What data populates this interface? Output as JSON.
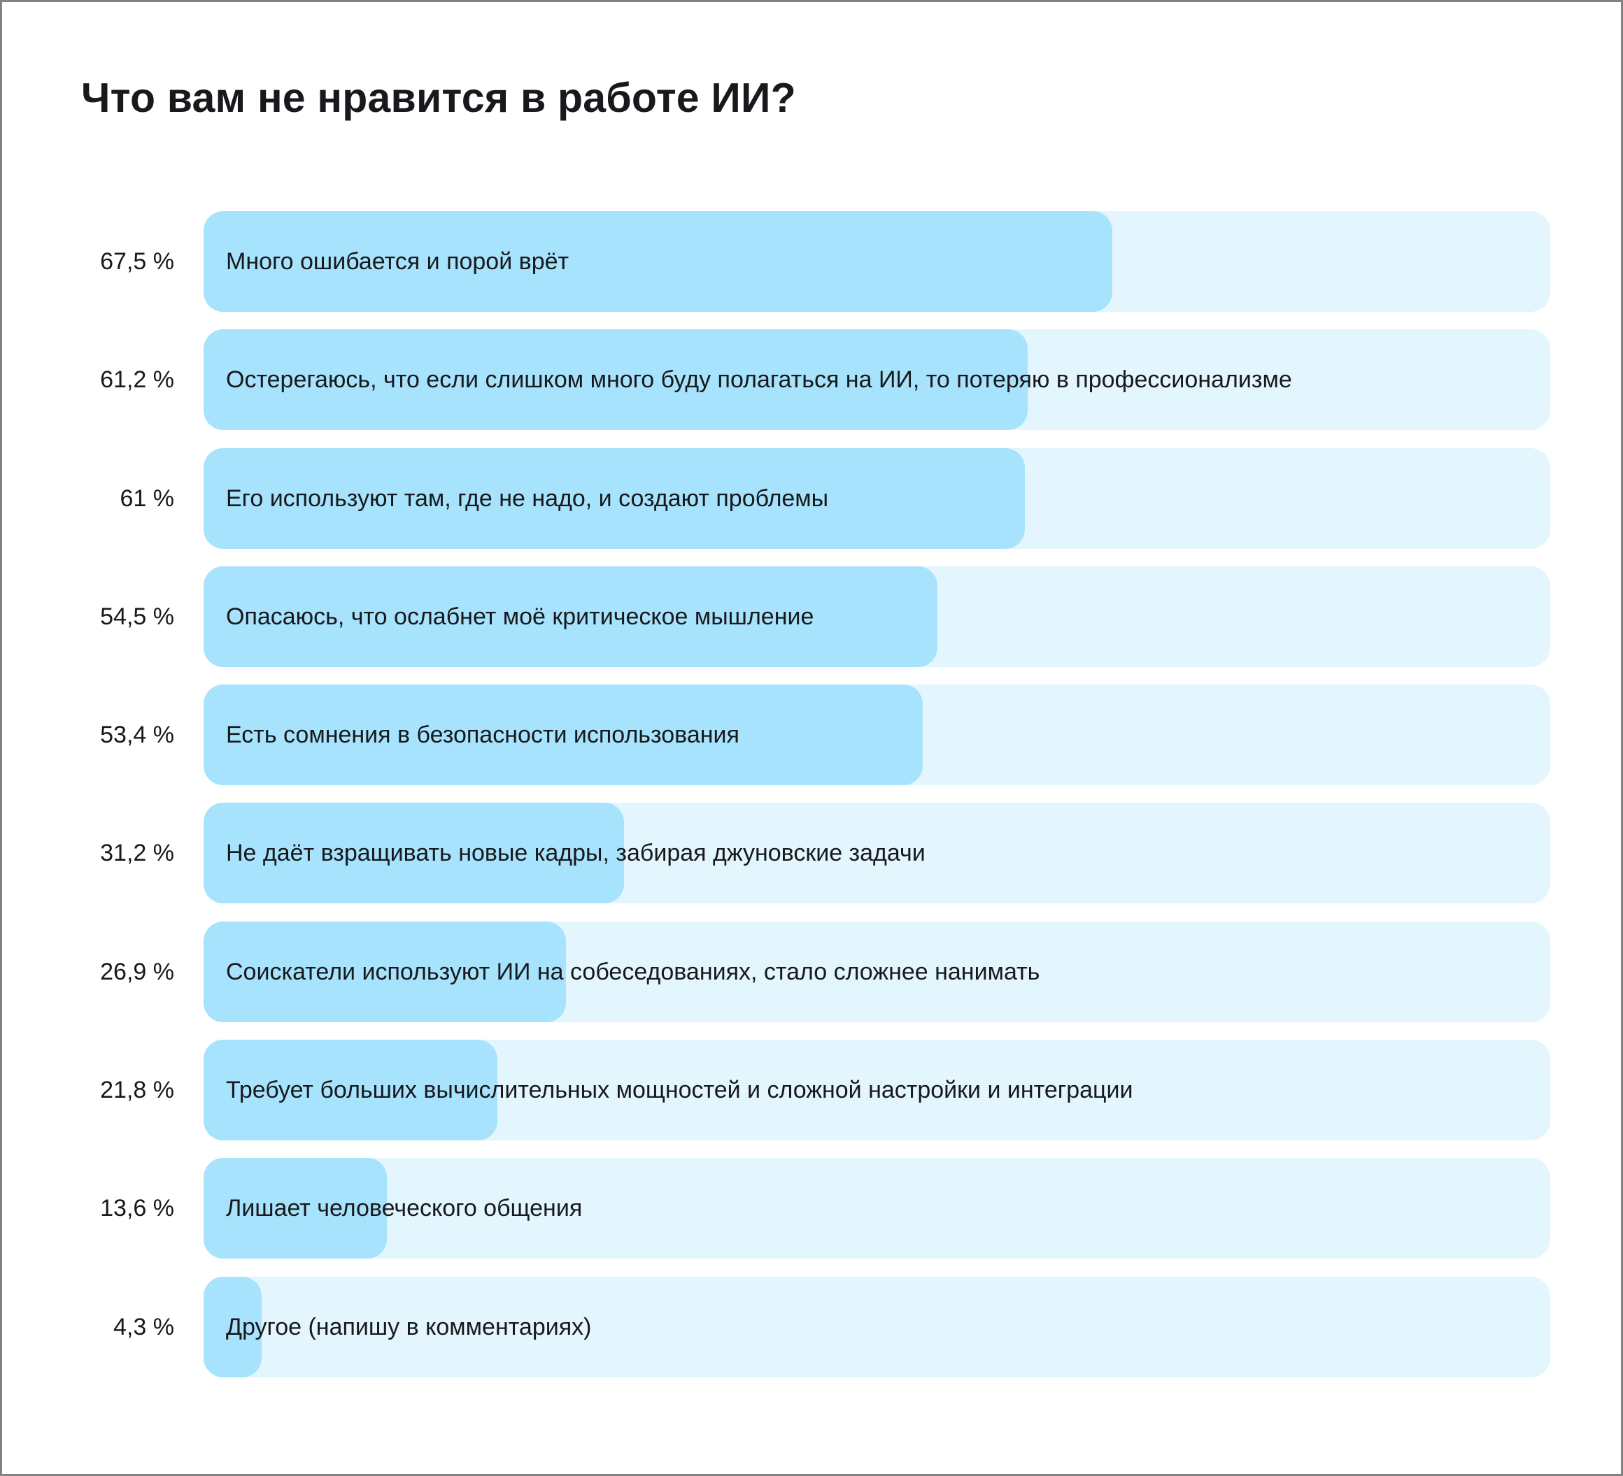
{
  "colors": {
    "bar_fill": "#a7e3fc",
    "bar_track": "#e3f6fd",
    "text": "#17191c",
    "background": "#ffffff",
    "frame_border": "#828282"
  },
  "chart_data": {
    "type": "bar",
    "orientation": "horizontal",
    "title": "Что вам не нравится в работе ИИ?",
    "xlabel": "",
    "ylabel": "",
    "xlim": [
      0,
      100
    ],
    "unit": "%",
    "grid": false,
    "legend": false,
    "categories": [
      "Много ошибается и порой врёт",
      "Остерегаюсь, что если слишком много буду полагаться на ИИ, то потеряю в профессионализме",
      "Его используют там, где не надо, и создают проблемы",
      "Опасаюсь, что ослабнет моё критическое мышление",
      "Есть сомнения в безопасности использования",
      "Не даёт взращивать новые кадры, забирая джуновские задачи",
      "Соискатели используют ИИ на собеседованиях, стало сложнее нанимать",
      "Требует больших вычислительных мощностей и сложной настройки и интеграции",
      "Лишает человеческого общения",
      "Другое (напишу в комментариях)"
    ],
    "values": [
      67.5,
      61.2,
      61,
      54.5,
      53.4,
      31.2,
      26.9,
      21.8,
      13.6,
      4.3
    ],
    "value_labels": [
      "67,5 %",
      "61,2 %",
      "61 %",
      "54,5 %",
      "53,4 %",
      "31,2 %",
      "26,9 %",
      "21,8 %",
      "13,6 %",
      "4,3 %"
    ]
  }
}
